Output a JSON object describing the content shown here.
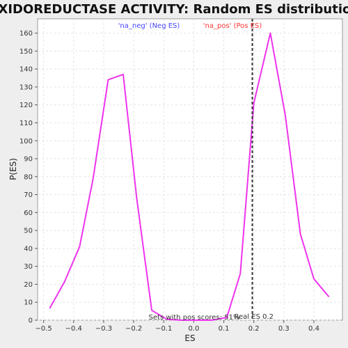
{
  "chart_data": {
    "type": "line",
    "title": "OXIDOREDUCTASE ACTIVITY: Random ES distribution",
    "xlabel": "ES",
    "ylabel": "P(ES)",
    "xlim": [
      -0.52,
      0.495
    ],
    "ylim": [
      0,
      168
    ],
    "x_ticks": [
      -0.5,
      -0.4,
      -0.3,
      -0.2,
      -0.1,
      0.0,
      0.1,
      0.2,
      0.3,
      0.4
    ],
    "x_tick_labels": [
      "−0.5",
      "−0.4",
      "−0.3",
      "−0.2",
      "−0.1",
      "0.0",
      "0.1",
      "0.2",
      "0.3",
      "0.4"
    ],
    "y_ticks": [
      0,
      10,
      20,
      30,
      40,
      50,
      60,
      70,
      80,
      90,
      100,
      110,
      120,
      130,
      140,
      150,
      160
    ],
    "grid": true,
    "legend": [
      {
        "label": "'na_neg' (Neg ES)",
        "color": "#4444ff"
      },
      {
        "label": "'na_pos' (Pos ES)",
        "color": "#ff3333"
      }
    ],
    "series": [
      {
        "color": "#ee33ee",
        "x": [
          -0.48,
          -0.43,
          -0.38,
          -0.335,
          -0.285,
          -0.235,
          -0.19,
          -0.14,
          -0.09,
          -0.04,
          0.01,
          0.06,
          0.11,
          0.155,
          0.2,
          0.255,
          0.305,
          0.355,
          0.4,
          0.45
        ],
        "y": [
          6.5,
          21.5,
          41,
          79,
          134,
          137,
          68,
          5.5,
          0.5,
          0,
          0,
          0,
          1.5,
          26,
          121,
          160,
          114,
          48,
          23,
          13
        ]
      }
    ],
    "vline": {
      "x": 0.195,
      "color": "#333333",
      "label": "Real ES 0.2"
    },
    "annotation": "Sets with pos scores: 51%"
  }
}
